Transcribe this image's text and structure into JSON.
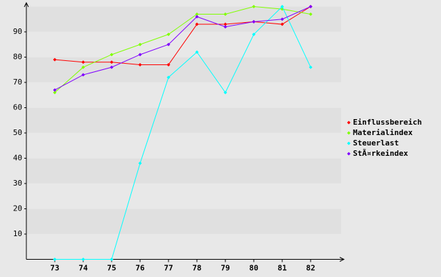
{
  "chart_data": {
    "type": "line",
    "categories": [
      "73",
      "74",
      "75",
      "76",
      "77",
      "78",
      "79",
      "80",
      "81",
      "82"
    ],
    "series": [
      {
        "name": "Einflussbereich",
        "color": "#ff0000",
        "values": [
          79,
          78,
          78,
          77,
          77,
          93,
          93,
          94,
          93,
          100
        ]
      },
      {
        "name": "Materialindex",
        "color": "#80ff00",
        "values": [
          66,
          76,
          81,
          85,
          89,
          97,
          97,
          100,
          99,
          97
        ]
      },
      {
        "name": "Steuerlast",
        "color": "#00ffff",
        "values": [
          0,
          0,
          0,
          38,
          72,
          82,
          66,
          89,
          100,
          76
        ]
      },
      {
        "name": "StÃ¤rkeindex",
        "color": "#8000ff",
        "values": [
          67,
          73,
          76,
          81,
          85,
          96,
          92,
          94,
          95,
          100
        ]
      }
    ],
    "ylim": [
      0,
      100
    ],
    "yticks": [
      10,
      20,
      30,
      40,
      50,
      60,
      70,
      80,
      90
    ],
    "grid": true,
    "legend": "right"
  }
}
